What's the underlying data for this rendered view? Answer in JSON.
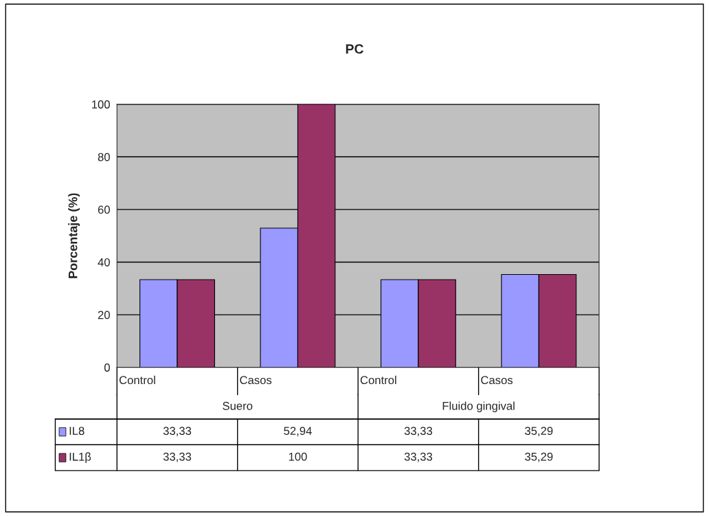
{
  "chart_data": {
    "type": "bar",
    "title": "PC",
    "ylabel": "Porcentaje (%)",
    "categories": [
      "Control",
      "Casos",
      "Control",
      "Casos"
    ],
    "annotations": [
      "Suero",
      "Fluido gingival"
    ],
    "series": [
      {
        "name": "IL8",
        "color": "#9999ff",
        "values": [
          33.33,
          52.94,
          33.33,
          35.29
        ],
        "value_labels": [
          "33,33",
          "52,94",
          "33,33",
          "35,29"
        ]
      },
      {
        "name": "IL1β",
        "color": "#993366",
        "values": [
          33.33,
          100,
          33.33,
          35.29
        ],
        "value_labels": [
          "33,33",
          "100",
          "33,33",
          "35,29"
        ]
      }
    ],
    "ylim": [
      0,
      100
    ],
    "yticks": [
      0,
      20,
      40,
      60,
      80,
      100
    ],
    "grid": "y",
    "legend": "bottom"
  }
}
